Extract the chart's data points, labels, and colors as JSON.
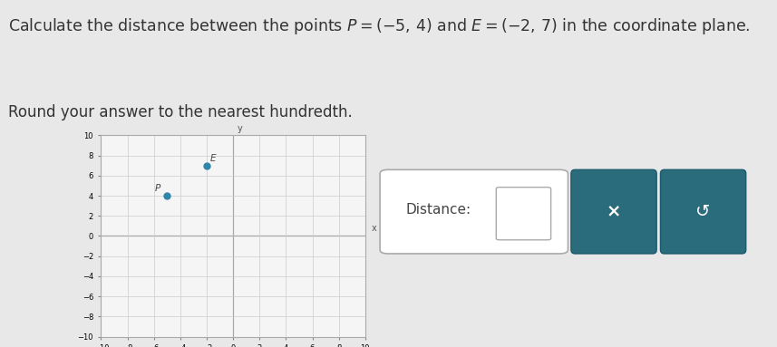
{
  "point_P": [
    -5,
    4
  ],
  "point_E": [
    -2,
    7
  ],
  "label_P": "P",
  "label_E": "E",
  "point_color": "#2e86ab",
  "axis_range": [
    -10,
    10
  ],
  "grid_color": "#cccccc",
  "bg_color": "#e8e8e8",
  "plot_bg": "#f5f5f5",
  "distance_label": "Distance:",
  "x_button_label": "×",
  "undo_button_label": "↺",
  "button_color": "#2a6b7c",
  "axis_label_x": "x",
  "axis_label_y": "y",
  "title_fs": 12.5,
  "subtitle_fs": 12.0
}
